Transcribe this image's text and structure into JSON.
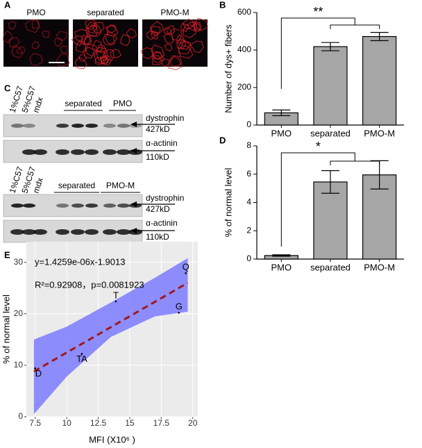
{
  "figure": {
    "panels": [
      "A",
      "B",
      "C",
      "D",
      "E"
    ],
    "panel_a": {
      "images": [
        "PMO",
        "separated",
        "PMO-M"
      ]
    },
    "blots": [
      {
        "lanes": [
          "1%C57",
          "5%C57",
          "mdx"
        ],
        "groups": [
          "separated",
          "PMO"
        ],
        "markers": [
          "dystrophin",
          "427kD",
          "α-actinin",
          "110kD"
        ]
      },
      {
        "lanes": [
          "1%C57",
          "5%C57",
          "mdx"
        ],
        "groups": [
          "separated",
          "PMO-M"
        ],
        "markers": [
          "dystrophin",
          "427kD",
          "α-actinin",
          "110kD"
        ]
      }
    ]
  },
  "chart_data": [
    {
      "type": "bar",
      "y_label": "Number of dys+ fibers",
      "categories": [
        "PMO",
        "separated",
        "PMO-M"
      ],
      "values": [
        65,
        418,
        472
      ],
      "errors": [
        15,
        22,
        22
      ],
      "color": "#a6a6a6",
      "ylim": [
        0,
        600
      ],
      "yticks": [
        0,
        200,
        400,
        600
      ],
      "annotations": [
        "**"
      ]
    },
    {
      "type": "bar",
      "y_label": "% of normal level",
      "categories": [
        "PMO",
        "separated",
        "PMO-M"
      ],
      "values": [
        0.25,
        5.45,
        5.95
      ],
      "errors": [
        0.05,
        0.8,
        1.0
      ],
      "color": "#a6a6a6",
      "ylim": [
        0,
        8
      ],
      "yticks": [
        0,
        2,
        4,
        6,
        8
      ],
      "annotations": [
        "*"
      ]
    },
    {
      "type": "scatter",
      "y_label": "% of normal level",
      "x_label": "MFI (X10⁶ )",
      "x": [
        7.5,
        11.2,
        13.9,
        18.9,
        19.45
      ],
      "values": [
        9.4,
        12.2,
        22.4,
        20.2,
        27.9
      ],
      "labels": [
        "D",
        "TA",
        "T",
        "G",
        "Q"
      ],
      "fit": {
        "x": [
          7.4,
          19.6
        ],
        "values": [
          8.8,
          26.0
        ],
        "color": "#a01818"
      },
      "band": {
        "x": [
          7.4,
          10,
          13.5,
          17,
          19.6
        ],
        "upper": [
          15,
          17.5,
          22.2,
          27,
          30.8
        ],
        "lower": [
          0.5,
          7.8,
          15.5,
          19.5,
          20.4
        ],
        "color": "#7b7bff"
      },
      "annotations": [
        "y=1.4259e-06x-1.9013",
        "R²=0.92908，p=0.0081923"
      ],
      "xlim": [
        6.8,
        20.4
      ],
      "ylim": [
        0,
        34
      ],
      "xticks": [
        7.5,
        10,
        12.5,
        15,
        17.5,
        20
      ],
      "yticks": [
        0,
        10,
        20,
        30
      ],
      "grid": true
    }
  ]
}
